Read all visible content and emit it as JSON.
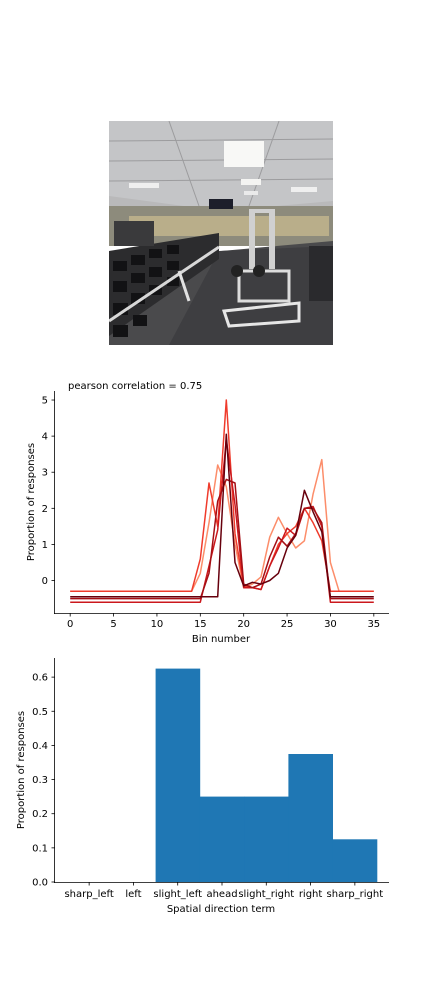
{
  "colors": {
    "bar": "#1f77b4",
    "line_ramp": [
      "#fc8d6a",
      "#ef3b2c",
      "#cb181d",
      "#a50f15",
      "#67000d"
    ]
  },
  "photo": {
    "scene": "gym interior"
  },
  "chart_data": [
    {
      "type": "line",
      "annotation": "pearson correlation = 0.75",
      "xlabel": "Bin number",
      "ylabel": "Proportion of responses",
      "xlim": [
        -1.75,
        36.75
      ],
      "ylim": [
        -0.9,
        5.25
      ],
      "xticks": [
        0,
        5,
        10,
        15,
        20,
        25,
        30,
        35
      ],
      "yticks": [
        0,
        1,
        2,
        3,
        4,
        5
      ],
      "grid": false,
      "series": [
        {
          "color": "#fc8d6a",
          "points": [
            [
              0,
              -0.3
            ],
            [
              14,
              -0.3
            ],
            [
              15,
              0.2
            ],
            [
              16,
              1.6
            ],
            [
              17,
              3.2
            ],
            [
              18,
              2.6
            ],
            [
              19,
              1.0
            ],
            [
              20,
              -0.2
            ],
            [
              21,
              -0.1
            ],
            [
              22,
              0.1
            ],
            [
              23,
              1.2
            ],
            [
              24,
              1.75
            ],
            [
              25,
              1.3
            ],
            [
              26,
              0.9
            ],
            [
              27,
              1.1
            ],
            [
              28,
              2.4
            ],
            [
              29,
              3.35
            ],
            [
              30,
              0.5
            ],
            [
              31,
              -0.3
            ],
            [
              35,
              -0.3
            ]
          ]
        },
        {
          "color": "#ef3b2c",
          "points": [
            [
              0,
              -0.3
            ],
            [
              14,
              -0.3
            ],
            [
              15,
              0.6
            ],
            [
              16,
              2.7
            ],
            [
              17,
              1.5
            ],
            [
              18,
              5.0
            ],
            [
              19,
              1.3
            ],
            [
              20,
              -0.15
            ],
            [
              21,
              -0.2
            ],
            [
              22,
              -0.25
            ],
            [
              23,
              0.4
            ],
            [
              24,
              1.0
            ],
            [
              25,
              1.3
            ],
            [
              26,
              1.5
            ],
            [
              27,
              2.0
            ],
            [
              28,
              1.6
            ],
            [
              29,
              1.1
            ],
            [
              30,
              -0.3
            ],
            [
              35,
              -0.3
            ]
          ]
        },
        {
          "color": "#cb181d",
          "points": [
            [
              0,
              -0.6
            ],
            [
              15,
              -0.6
            ],
            [
              16,
              0.4
            ],
            [
              17,
              1.4
            ],
            [
              18,
              3.9
            ],
            [
              19,
              2.1
            ],
            [
              20,
              -0.2
            ],
            [
              21,
              -0.2
            ],
            [
              22,
              -0.25
            ],
            [
              23,
              0.4
            ],
            [
              24,
              0.9
            ],
            [
              25,
              1.45
            ],
            [
              26,
              1.25
            ],
            [
              27,
              2.0
            ],
            [
              28,
              2.05
            ],
            [
              29,
              1.5
            ],
            [
              30,
              -0.6
            ],
            [
              35,
              -0.6
            ]
          ]
        },
        {
          "color": "#a50f15",
          "points": [
            [
              0,
              -0.5
            ],
            [
              15,
              -0.5
            ],
            [
              16,
              0.2
            ],
            [
              17,
              2.2
            ],
            [
              18,
              2.8
            ],
            [
              19,
              2.7
            ],
            [
              20,
              -0.1
            ],
            [
              21,
              -0.2
            ],
            [
              22,
              -0.1
            ],
            [
              23,
              0.65
            ],
            [
              24,
              1.2
            ],
            [
              25,
              0.95
            ],
            [
              26,
              1.3
            ],
            [
              27,
              2.0
            ],
            [
              28,
              2.0
            ],
            [
              29,
              1.6
            ],
            [
              30,
              -0.5
            ],
            [
              35,
              -0.5
            ]
          ]
        },
        {
          "color": "#67000d",
          "points": [
            [
              0,
              -0.45
            ],
            [
              17,
              -0.45
            ],
            [
              18,
              4.05
            ],
            [
              19,
              0.5
            ],
            [
              20,
              -0.15
            ],
            [
              21,
              -0.05
            ],
            [
              22,
              -0.1
            ],
            [
              23,
              0.0
            ],
            [
              24,
              0.2
            ],
            [
              25,
              0.9
            ],
            [
              26,
              1.25
            ],
            [
              27,
              2.5
            ],
            [
              28,
              1.9
            ],
            [
              29,
              1.35
            ],
            [
              30,
              -0.45
            ],
            [
              35,
              -0.45
            ]
          ]
        }
      ]
    },
    {
      "type": "bar",
      "xlabel": "Spatial direction term",
      "ylabel": "Proportion of responses",
      "categories": [
        "sharp_left",
        "left",
        "slight_left",
        "ahead",
        "slight_right",
        "right",
        "sharp_right"
      ],
      "values": [
        0.0,
        0.0,
        0.625,
        0.25,
        0.25,
        0.375,
        0.125
      ],
      "ylim": [
        0,
        0.656
      ],
      "yticks": [
        "0.0",
        "0.1",
        "0.2",
        "0.3",
        "0.4",
        "0.5",
        "0.6"
      ],
      "grid": false
    }
  ]
}
